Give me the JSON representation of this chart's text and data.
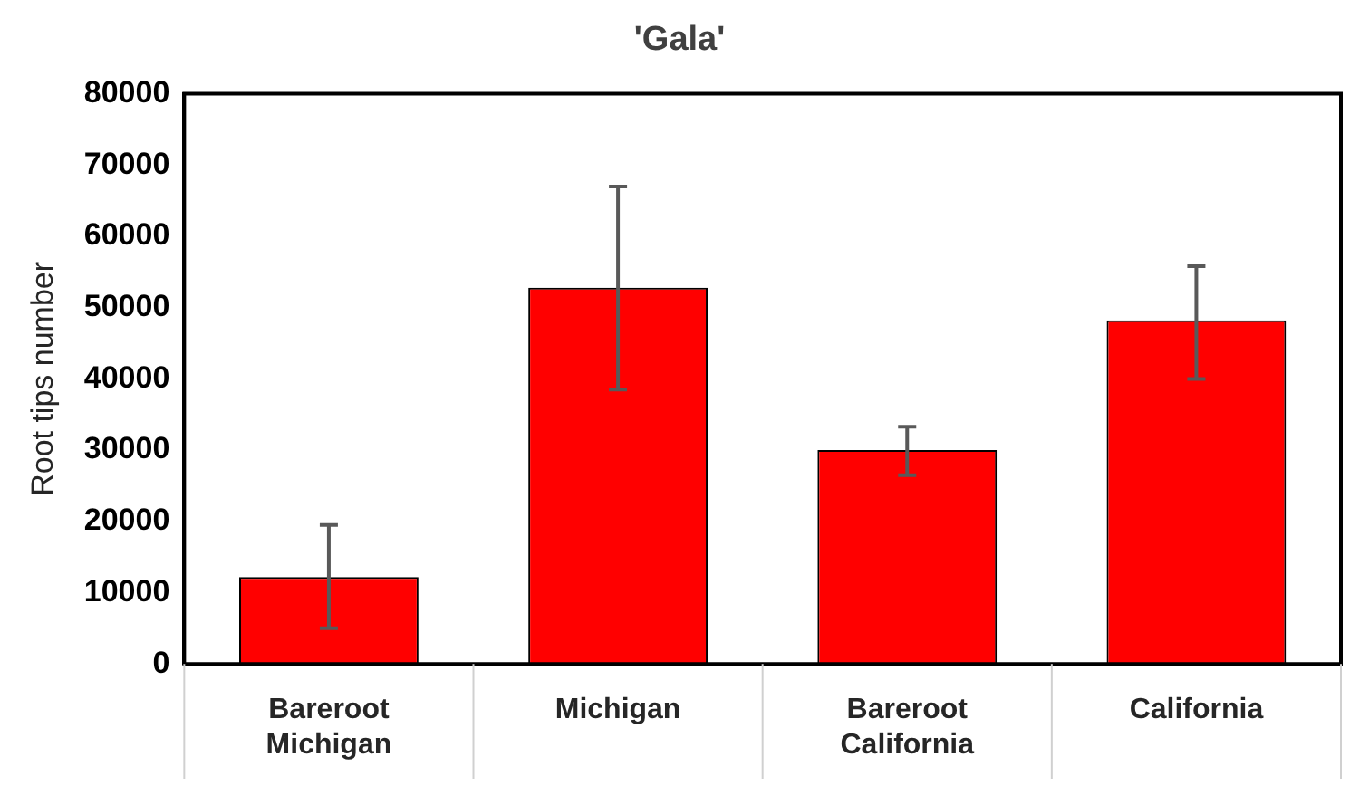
{
  "chart_data": {
    "type": "bar",
    "title": "'Gala'",
    "ylabel": "Root tips number",
    "categories": [
      "Bareroot Michigan",
      "Michigan",
      "Bareroot California",
      "California"
    ],
    "values": [
      12200,
      52800,
      30000,
      48200
    ],
    "color": "#ff0000",
    "errors": [
      [
        5000,
        19500
      ],
      [
        38500,
        67000
      ],
      [
        26500,
        33300
      ],
      [
        40000,
        55800
      ]
    ],
    "ylim": [
      0,
      80000
    ],
    "yticks": [
      0,
      10000,
      20000,
      30000,
      40000,
      50000,
      60000,
      70000,
      80000
    ],
    "grid": false,
    "legend": false
  }
}
